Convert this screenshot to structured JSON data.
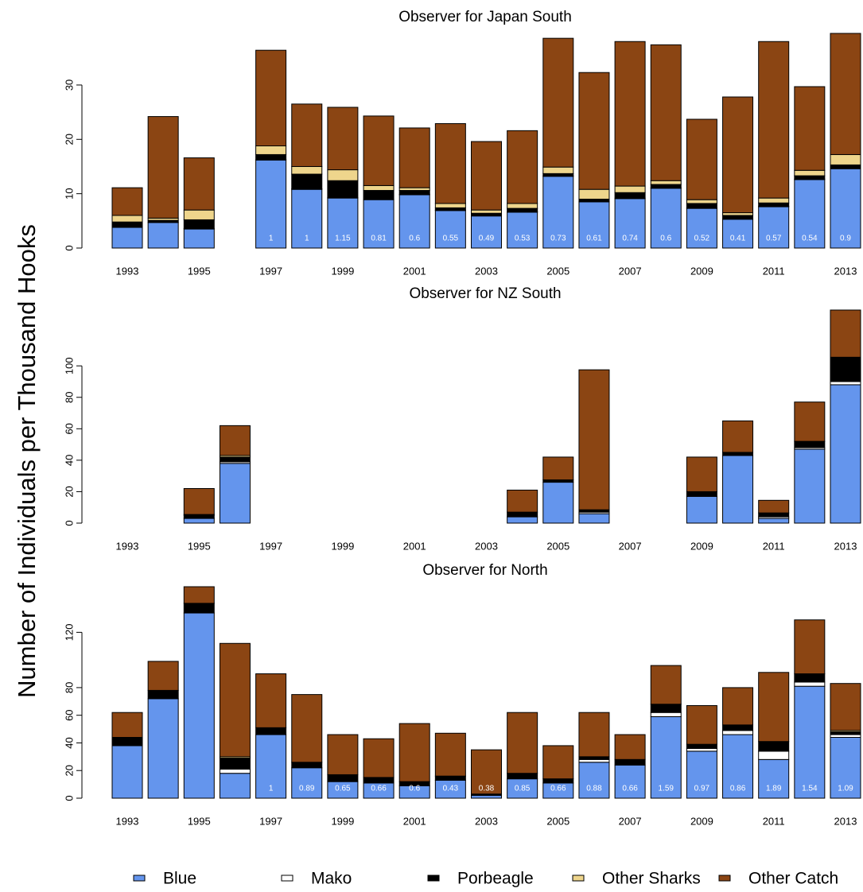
{
  "chart_data": [
    {
      "type": "bar",
      "stacked": true,
      "title": "Observer for Japan South",
      "categories": [
        "1993",
        null,
        "1995",
        null,
        "1997",
        null,
        "1999",
        null,
        "2001",
        null,
        "2003",
        null,
        "2005",
        null,
        "2007",
        null,
        "2009",
        null,
        "2011",
        null,
        "2013"
      ],
      "ylim": [
        0,
        39.5
      ],
      "yticks": [
        0,
        10,
        20,
        30
      ],
      "series": [
        {
          "name": "Blue",
          "color": "#6495ed",
          "values": [
            3.8,
            4.7,
            3.5,
            null,
            16.2,
            10.8,
            9.2,
            8.9,
            9.8,
            6.9,
            5.9,
            6.6,
            13.2,
            8.5,
            9.1,
            11.0,
            7.3,
            5.3,
            7.6,
            12.6,
            14.6
          ]
        },
        {
          "name": "Mako",
          "color": "#ffffff",
          "values": [
            0.1,
            0.1,
            0.1,
            null,
            0.1,
            0.1,
            0.1,
            0.1,
            0.1,
            0.1,
            0.1,
            0.1,
            0.1,
            0.1,
            0.1,
            0.1,
            0.1,
            0.1,
            0.1,
            0.1,
            0.1
          ]
        },
        {
          "name": "Porbeagle",
          "color": "#000000",
          "values": [
            0.9,
            0.3,
            1.6,
            null,
            0.9,
            2.7,
            3.1,
            1.6,
            0.7,
            0.4,
            0.4,
            0.6,
            0.4,
            0.4,
            1.0,
            0.6,
            0.8,
            0.6,
            0.6,
            0.6,
            0.6
          ]
        },
        {
          "name": "Other Sharks",
          "color": "#eed58c",
          "values": [
            1.2,
            0.4,
            1.8,
            null,
            1.6,
            1.4,
            2.0,
            0.9,
            0.5,
            0.8,
            0.6,
            0.9,
            1.2,
            1.8,
            1.2,
            0.7,
            0.7,
            0.5,
            0.9,
            1.0,
            1.9
          ]
        },
        {
          "name": "Other Catch",
          "color": "#8b4513",
          "values": [
            5.1,
            18.7,
            9.6,
            null,
            17.6,
            11.5,
            11.5,
            12.8,
            11.0,
            14.7,
            12.6,
            13.4,
            23.7,
            21.5,
            26.6,
            25.0,
            14.8,
            21.3,
            28.8,
            15.4,
            22.3
          ]
        }
      ],
      "bar_labels": [
        null,
        null,
        null,
        null,
        1,
        1,
        1.15,
        0.81,
        0.6,
        0.55,
        0.49,
        0.53,
        0.73,
        0.61,
        0.74,
        0.6,
        0.52,
        0.41,
        0.57,
        0.54,
        0.9
      ]
    },
    {
      "type": "bar",
      "stacked": true,
      "title": "Observer for NZ South",
      "ylabel": "Number of Individuals per Thousand Hooks",
      "categories": [
        "1993",
        null,
        "1995",
        null,
        "1997",
        null,
        "1999",
        null,
        "2001",
        null,
        "2003",
        null,
        "2005",
        null,
        "2007",
        null,
        "2009",
        null,
        "2011",
        null,
        "2013"
      ],
      "ylim": [
        0,
        136
      ],
      "yticks": [
        0,
        20,
        40,
        60,
        80,
        100
      ],
      "series": [
        {
          "name": "Blue",
          "color": "#6495ed",
          "values": [
            null,
            null,
            3,
            38,
            null,
            null,
            null,
            null,
            null,
            null,
            null,
            4,
            26,
            6,
            null,
            null,
            17,
            43,
            3,
            47,
            88
          ]
        },
        {
          "name": "Mako",
          "color": "#ffffff",
          "values": [
            null,
            null,
            0,
            1,
            null,
            null,
            null,
            null,
            null,
            null,
            null,
            0,
            0,
            1,
            null,
            null,
            0,
            0,
            1,
            1,
            2
          ]
        },
        {
          "name": "Porbeagle",
          "color": "#000000",
          "values": [
            null,
            null,
            2,
            3,
            null,
            null,
            null,
            null,
            null,
            null,
            null,
            3,
            1.5,
            1.5,
            null,
            null,
            3,
            2,
            2.5,
            4,
            15
          ]
        },
        {
          "name": "Other Sharks",
          "color": "#eed58c",
          "values": [
            null,
            null,
            0.5,
            1,
            null,
            null,
            null,
            null,
            null,
            null,
            null,
            0,
            0,
            0,
            null,
            null,
            0,
            0,
            0,
            0,
            0.5
          ]
        },
        {
          "name": "Other Catch",
          "color": "#8b4513",
          "values": [
            null,
            null,
            16.5,
            19,
            null,
            null,
            null,
            null,
            null,
            null,
            null,
            14,
            14.5,
            89,
            null,
            null,
            22,
            20,
            8,
            25,
            30
          ]
        }
      ]
    },
    {
      "type": "bar",
      "stacked": true,
      "title": "Observer for North",
      "categories": [
        "1993",
        null,
        "1995",
        null,
        "1997",
        null,
        "1999",
        null,
        "2001",
        null,
        "2003",
        null,
        "2005",
        null,
        "2007",
        null,
        "2009",
        null,
        "2011",
        null,
        "2013"
      ],
      "ylim": [
        0,
        153
      ],
      "yticks": [
        0,
        20,
        40,
        60,
        80,
        120
      ],
      "series": [
        {
          "name": "Blue",
          "color": "#6495ed",
          "values": [
            38,
            72,
            134,
            18,
            46,
            22,
            12,
            11,
            9,
            13,
            2,
            14,
            11,
            26,
            24,
            59,
            34,
            46,
            28,
            81,
            44
          ]
        },
        {
          "name": "Mako",
          "color": "#ffffff",
          "values": [
            0,
            0,
            0,
            3,
            0,
            0,
            0,
            0,
            0,
            0,
            0,
            0,
            0,
            2,
            0,
            3,
            2,
            3,
            6,
            3,
            2
          ]
        },
        {
          "name": "Porbeagle",
          "color": "#000000",
          "values": [
            6,
            6,
            7,
            8,
            5,
            4,
            5,
            4,
            3,
            3,
            1,
            4,
            3,
            2,
            4,
            6,
            3,
            4,
            7,
            6,
            2
          ]
        },
        {
          "name": "Other Sharks",
          "color": "#eed58c",
          "values": [
            0,
            0,
            0,
            1,
            0,
            0,
            0,
            0,
            0,
            0,
            0,
            0,
            0,
            0,
            0,
            0,
            0,
            0,
            0,
            0,
            1
          ]
        },
        {
          "name": "Other Catch",
          "color": "#8b4513",
          "values": [
            18,
            21,
            12,
            82,
            39,
            49,
            29,
            28,
            42,
            31,
            32,
            44,
            24,
            32,
            18,
            28,
            28,
            27,
            50,
            39,
            34
          ]
        }
      ],
      "bar_labels": [
        null,
        null,
        null,
        null,
        1,
        0.89,
        0.65,
        0.66,
        0.6,
        0.43,
        0.38,
        0.85,
        0.66,
        0.88,
        0.66,
        1.59,
        0.97,
        0.86,
        1.89,
        1.54,
        1.09
      ]
    }
  ]
}
